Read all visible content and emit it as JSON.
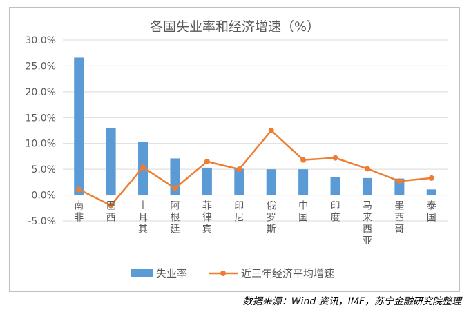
{
  "chart_data": {
    "type": "bar+line",
    "title": "各国失业率和经济增速（%）",
    "categories": [
      "南非",
      "巴西",
      "土耳其",
      "阿根廷",
      "菲律宾",
      "印尼",
      "俄罗斯",
      "中国",
      "印度",
      "马来西亚",
      "墨西哥",
      "泰国"
    ],
    "series": [
      {
        "name": "失业率",
        "type": "bar",
        "color": "#5b9bd5",
        "values": [
          26.6,
          12.9,
          10.3,
          7.1,
          5.3,
          5.1,
          5.0,
          5.0,
          3.5,
          3.3,
          3.2,
          1.1
        ]
      },
      {
        "name": "近三年经济平均增速",
        "type": "line",
        "color": "#ed7d31",
        "values": [
          1.1,
          -2.0,
          5.4,
          1.3,
          6.5,
          5.0,
          12.5,
          6.8,
          7.2,
          5.1,
          2.7,
          3.3
        ]
      }
    ],
    "ylim": [
      -5.0,
      30.0
    ],
    "yticks": [
      "30.0%",
      "25.0%",
      "20.0%",
      "15.0%",
      "10.0%",
      "5.0%",
      "0.0%",
      "-5.0%"
    ],
    "grid": true,
    "legend_position": "bottom"
  },
  "source_note": "数据来源：Wind 资讯，IMF，苏宁金融研究院整理"
}
